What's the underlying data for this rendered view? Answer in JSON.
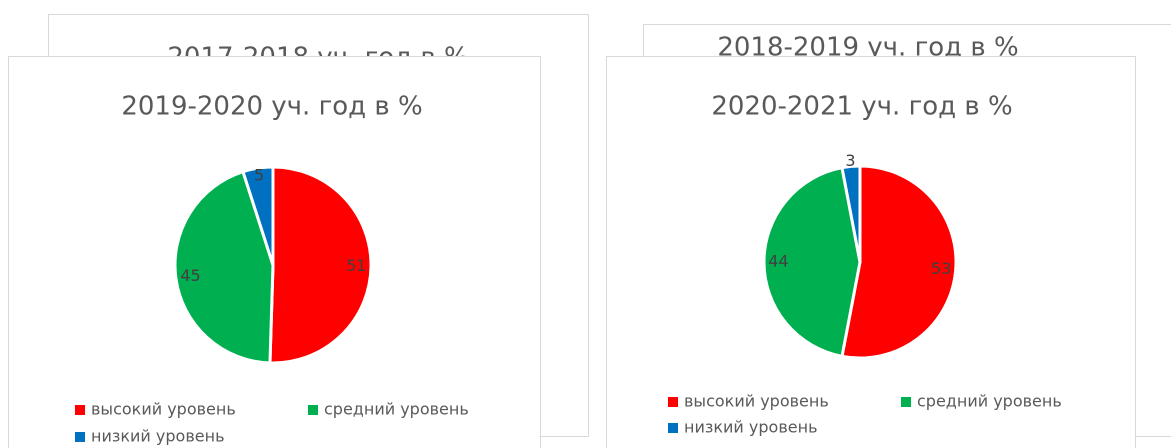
{
  "hidden_cards": [
    {
      "title": "2017-2018 уч. год в %"
    },
    {
      "title": "2018-2019 уч. год в %"
    }
  ],
  "chart_data": [
    {
      "type": "pie",
      "title": "2019-2020 уч. год в %",
      "categories": [
        "высокий уровень",
        "средний уровень",
        "низкий уровень"
      ],
      "values": [
        51,
        45,
        5
      ],
      "colors": [
        "#ff0000",
        "#00b050",
        "#0070c0"
      ]
    },
    {
      "type": "pie",
      "title": "2020-2021 уч. год в %",
      "categories": [
        "высокий уровень",
        "средний уровень",
        "низкий уровень"
      ],
      "values": [
        53,
        44,
        3
      ],
      "colors": [
        "#ff0000",
        "#00b050",
        "#0070c0"
      ]
    }
  ]
}
